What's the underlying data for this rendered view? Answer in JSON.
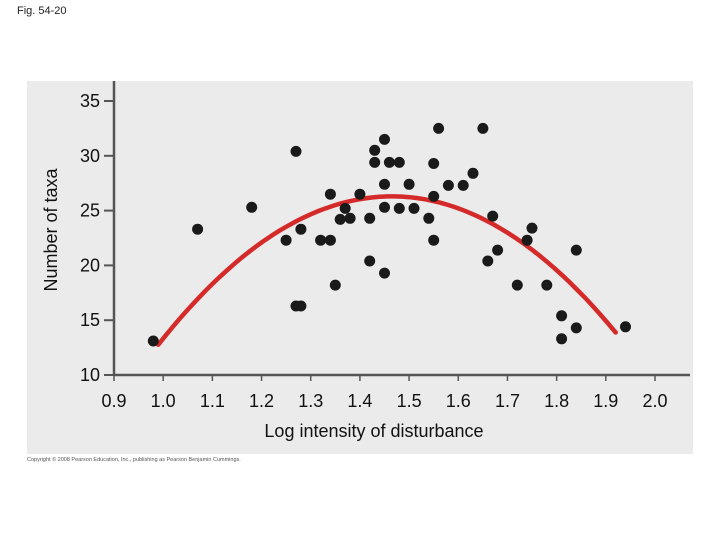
{
  "figure": {
    "label": "Fig. 54-20",
    "copyright": "Copyright © 2008 Pearson Education, Inc., publishing as Pearson Benjamin Cummings."
  },
  "chart_data": {
    "type": "scatter",
    "title": "",
    "xlabel": "Log intensity of disturbance",
    "ylabel": "Number of taxa",
    "xlim": [
      0.9,
      2.0
    ],
    "ylim": [
      10,
      35
    ],
    "xticks": [
      "0.9",
      "1.0",
      "1.1",
      "1.2",
      "1.3",
      "1.4",
      "1.5",
      "1.6",
      "1.7",
      "1.8",
      "1.9",
      "2.0"
    ],
    "yticks": [
      "35",
      "30",
      "25",
      "20",
      "15",
      "10"
    ],
    "grid": false,
    "legend": "none",
    "colors": {
      "points": "#1a1a1a",
      "curve": "#d42a2a",
      "background": "#ebebeb",
      "axis": "#555555"
    },
    "points": [
      [
        0.98,
        13.1
      ],
      [
        1.07,
        23.3
      ],
      [
        1.18,
        25.3
      ],
      [
        1.25,
        22.3
      ],
      [
        1.27,
        30.4
      ],
      [
        1.27,
        16.3
      ],
      [
        1.28,
        16.3
      ],
      [
        1.28,
        23.3
      ],
      [
        1.32,
        22.3
      ],
      [
        1.34,
        22.3
      ],
      [
        1.34,
        26.5
      ],
      [
        1.35,
        18.2
      ],
      [
        1.36,
        24.2
      ],
      [
        1.37,
        25.2
      ],
      [
        1.38,
        24.3
      ],
      [
        1.4,
        26.5
      ],
      [
        1.42,
        20.4
      ],
      [
        1.42,
        24.3
      ],
      [
        1.43,
        29.4
      ],
      [
        1.43,
        30.5
      ],
      [
        1.45,
        31.5
      ],
      [
        1.45,
        27.4
      ],
      [
        1.45,
        25.3
      ],
      [
        1.45,
        19.3
      ],
      [
        1.46,
        29.4
      ],
      [
        1.48,
        29.4
      ],
      [
        1.48,
        25.2
      ],
      [
        1.5,
        27.4
      ],
      [
        1.51,
        25.2
      ],
      [
        1.54,
        24.3
      ],
      [
        1.55,
        29.3
      ],
      [
        1.55,
        26.3
      ],
      [
        1.55,
        22.3
      ],
      [
        1.56,
        32.5
      ],
      [
        1.58,
        27.3
      ],
      [
        1.61,
        27.3
      ],
      [
        1.63,
        28.4
      ],
      [
        1.65,
        32.5
      ],
      [
        1.66,
        20.4
      ],
      [
        1.67,
        24.5
      ],
      [
        1.68,
        21.4
      ],
      [
        1.72,
        18.2
      ],
      [
        1.74,
        22.3
      ],
      [
        1.75,
        23.4
      ],
      [
        1.78,
        18.2
      ],
      [
        1.81,
        15.4
      ],
      [
        1.81,
        13.3
      ],
      [
        1.84,
        14.3
      ],
      [
        1.84,
        21.4
      ],
      [
        1.94,
        14.4
      ]
    ],
    "fit_curve": {
      "type": "quadratic",
      "vertex_x": 1.465,
      "vertex_y": 26.3,
      "coefficient": -60,
      "x_range": [
        0.99,
        1.92
      ]
    }
  }
}
